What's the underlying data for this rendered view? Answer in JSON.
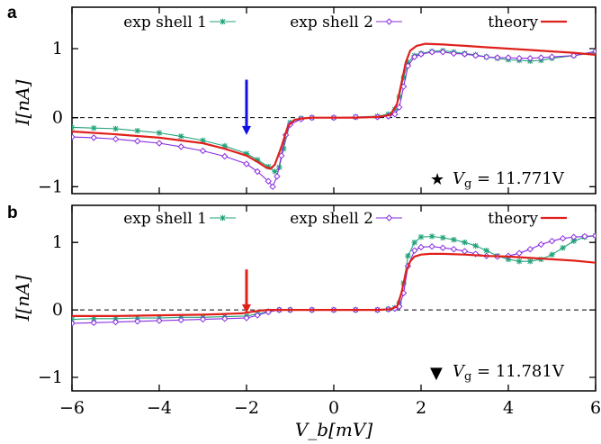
{
  "chart_data": [
    {
      "panel": "a",
      "type": "line",
      "xlim": [
        -6,
        6
      ],
      "ylim": [
        -1.1,
        1.6
      ],
      "yticks": [
        -1,
        0,
        1
      ],
      "ytick_labels": [
        "−1",
        "0",
        "1"
      ],
      "ylabel": "I[nA]",
      "xlabel": "",
      "zero_line": "dashed",
      "legend": "top",
      "annotation": {
        "symbol": "★",
        "text": "V_g = 11.771V",
        "prefix": "V",
        "subscript": "g",
        "suffix": " = 11.771V"
      },
      "arrow": {
        "x": -2.0,
        "y_top": 0.55,
        "y_tip": -0.25,
        "color": "#1010e0"
      },
      "series": [
        {
          "name": "exp shell 1",
          "color": "#22a37a",
          "marker": "star",
          "x": [
            -6,
            -5.5,
            -5,
            -4.5,
            -4,
            -3.5,
            -3,
            -2.5,
            -2,
            -1.75,
            -1.5,
            -1.35,
            -1.25,
            -1.15,
            -1,
            -0.75,
            -0.5,
            0,
            0.5,
            1,
            1.25,
            1.4,
            1.5,
            1.6,
            1.7,
            1.85,
            2,
            2.25,
            2.5,
            2.75,
            3,
            3.25,
            3.5,
            3.75,
            4,
            4.25,
            4.5,
            4.75,
            5,
            5.5,
            6
          ],
          "y": [
            -0.14,
            -0.15,
            -0.16,
            -0.19,
            -0.22,
            -0.27,
            -0.33,
            -0.41,
            -0.52,
            -0.61,
            -0.71,
            -0.78,
            -0.72,
            -0.45,
            -0.07,
            -0.01,
            0.0,
            0.0,
            0.01,
            0.02,
            0.05,
            0.12,
            0.3,
            0.58,
            0.8,
            0.9,
            0.93,
            0.96,
            0.97,
            0.95,
            0.93,
            0.91,
            0.88,
            0.86,
            0.84,
            0.83,
            0.82,
            0.83,
            0.86,
            0.9,
            0.94
          ]
        },
        {
          "name": "exp shell 2",
          "color": "#8a2be2",
          "marker": "diamond",
          "x": [
            -6,
            -5.5,
            -5,
            -4.5,
            -4,
            -3.5,
            -3,
            -2.5,
            -2,
            -1.75,
            -1.5,
            -1.4,
            -1.3,
            -1.2,
            -1.1,
            -1,
            -0.75,
            -0.5,
            0,
            0.5,
            1,
            1.25,
            1.4,
            1.5,
            1.6,
            1.7,
            1.85,
            2,
            2.25,
            2.5,
            2.75,
            3,
            3.25,
            3.5,
            3.75,
            4,
            4.25,
            4.5,
            4.75,
            5,
            5.5,
            6
          ],
          "y": [
            -0.28,
            -0.29,
            -0.31,
            -0.34,
            -0.37,
            -0.42,
            -0.48,
            -0.56,
            -0.67,
            -0.78,
            -0.92,
            -1.0,
            -0.85,
            -0.55,
            -0.25,
            -0.1,
            -0.02,
            0.0,
            0.0,
            0.01,
            0.01,
            0.02,
            0.05,
            0.15,
            0.45,
            0.75,
            0.88,
            0.92,
            0.95,
            0.95,
            0.93,
            0.92,
            0.9,
            0.88,
            0.87,
            0.87,
            0.86,
            0.86,
            0.87,
            0.88,
            0.9,
            0.96
          ]
        },
        {
          "name": "theory",
          "color": "#e0201b",
          "marker": "none",
          "x": [
            -6,
            -5,
            -4,
            -3,
            -2.5,
            -2,
            -1.75,
            -1.55,
            -1.45,
            -1.35,
            -1.2,
            -1.05,
            -0.9,
            -0.7,
            -0.5,
            0,
            0.5,
            1,
            1.3,
            1.45,
            1.55,
            1.65,
            1.75,
            1.9,
            2.1,
            2.5,
            3,
            3.5,
            4,
            4.5,
            5,
            5.5,
            6
          ],
          "y": [
            -0.2,
            -0.24,
            -0.29,
            -0.37,
            -0.45,
            -0.55,
            -0.64,
            -0.72,
            -0.74,
            -0.68,
            -0.42,
            -0.12,
            -0.03,
            -0.01,
            0.0,
            0.0,
            0.0,
            0.01,
            0.04,
            0.2,
            0.5,
            0.8,
            0.97,
            1.04,
            1.07,
            1.06,
            1.04,
            1.02,
            1.0,
            0.98,
            0.96,
            0.94,
            0.91
          ]
        }
      ]
    },
    {
      "panel": "b",
      "type": "line",
      "xlim": [
        -6,
        6
      ],
      "ylim": [
        -1.2,
        1.55
      ],
      "yticks": [
        -1,
        0,
        1
      ],
      "ytick_labels": [
        "−1",
        "0",
        "1"
      ],
      "xticks": [
        -6,
        -4,
        -2,
        0,
        2,
        4,
        6
      ],
      "xtick_labels": [
        "−6",
        "−4",
        "−2",
        "0",
        "2",
        "4",
        "6"
      ],
      "ylabel": "I[nA]",
      "xlabel": "V_b[mV]",
      "zero_line": "dashed",
      "legend": "top",
      "annotation": {
        "symbol": "▼",
        "text": "V_g = 11.781V",
        "prefix": "V",
        "subscript": "g",
        "suffix": " = 11.781V"
      },
      "arrow": {
        "x": -2.0,
        "y_top": 0.6,
        "y_tip": -0.05,
        "color": "#e0201b"
      },
      "series": [
        {
          "name": "exp shell 1",
          "color": "#22a37a",
          "marker": "star",
          "x": [
            -6,
            -5.5,
            -5,
            -4.5,
            -4,
            -3.5,
            -3,
            -2.5,
            -2,
            -1.75,
            -1.5,
            -1.25,
            -1,
            -0.5,
            0,
            0.5,
            1,
            1.25,
            1.4,
            1.5,
            1.6,
            1.7,
            1.85,
            2,
            2.25,
            2.5,
            2.75,
            3,
            3.25,
            3.5,
            3.75,
            4,
            4.25,
            4.5,
            4.75,
            5,
            5.25,
            5.5,
            5.75,
            6
          ],
          "y": [
            -0.14,
            -0.13,
            -0.13,
            -0.12,
            -0.12,
            -0.11,
            -0.11,
            -0.1,
            -0.09,
            -0.06,
            -0.02,
            0.0,
            0.0,
            0.0,
            0.0,
            0.0,
            0.0,
            0.01,
            0.03,
            0.1,
            0.4,
            0.8,
            1.0,
            1.08,
            1.09,
            1.07,
            1.04,
            1.0,
            0.95,
            0.88,
            0.8,
            0.75,
            0.72,
            0.72,
            0.75,
            0.82,
            0.92,
            1.02,
            1.08,
            1.1
          ]
        },
        {
          "name": "exp shell 2",
          "color": "#8a2be2",
          "marker": "diamond",
          "x": [
            -6,
            -5.5,
            -5,
            -4.5,
            -4,
            -3.5,
            -3,
            -2.5,
            -2,
            -1.75,
            -1.5,
            -1.25,
            -1,
            -0.5,
            0,
            0.5,
            1,
            1.25,
            1.4,
            1.5,
            1.6,
            1.7,
            1.85,
            2,
            2.25,
            2.5,
            2.75,
            3,
            3.25,
            3.5,
            3.75,
            4,
            4.25,
            4.5,
            4.75,
            5,
            5.25,
            5.5,
            5.75,
            6
          ],
          "y": [
            -0.2,
            -0.19,
            -0.18,
            -0.17,
            -0.16,
            -0.15,
            -0.14,
            -0.13,
            -0.12,
            -0.08,
            -0.03,
            0.0,
            0.0,
            0.0,
            0.0,
            0.0,
            0.0,
            0.01,
            0.02,
            0.05,
            0.25,
            0.65,
            0.88,
            0.93,
            0.94,
            0.92,
            0.9,
            0.87,
            0.83,
            0.8,
            0.79,
            0.8,
            0.84,
            0.9,
            0.97,
            1.02,
            1.06,
            1.08,
            1.09,
            1.1
          ]
        },
        {
          "name": "theory",
          "color": "#e0201b",
          "marker": "none",
          "x": [
            -6,
            -5,
            -4,
            -3,
            -2.5,
            -2.1,
            -1.9,
            -1.7,
            -1.5,
            -1.3,
            -1,
            -0.5,
            0,
            0.5,
            1,
            1.3,
            1.45,
            1.55,
            1.65,
            1.75,
            1.85,
            2,
            2.2,
            2.5,
            3,
            3.5,
            4,
            4.5,
            5,
            5.5,
            6
          ],
          "y": [
            -0.09,
            -0.09,
            -0.08,
            -0.07,
            -0.06,
            -0.05,
            -0.03,
            -0.01,
            0.0,
            0.0,
            0.0,
            0.0,
            0.0,
            0.0,
            0.0,
            0.01,
            0.05,
            0.25,
            0.55,
            0.72,
            0.79,
            0.82,
            0.83,
            0.83,
            0.82,
            0.8,
            0.79,
            0.77,
            0.75,
            0.73,
            0.7
          ]
        }
      ]
    }
  ]
}
